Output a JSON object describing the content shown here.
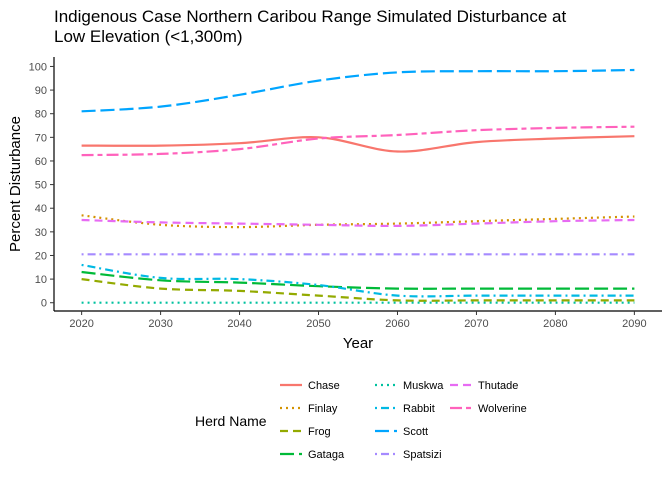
{
  "chart_data": {
    "type": "line",
    "title_lines": [
      "Indigenous Case Northern Caribou Range Simulated Disturbance at",
      "Low Elevation (<1,300m)"
    ],
    "xlabel": "Year",
    "ylabel": "Percent Disturbance",
    "xlim": [
      2016.5,
      2093.5
    ],
    "ylim": [
      -3.5,
      104
    ],
    "x_ticks": [
      2020,
      2030,
      2040,
      2050,
      2060,
      2070,
      2080,
      2090
    ],
    "y_ticks": [
      0,
      10,
      20,
      30,
      40,
      50,
      60,
      70,
      80,
      90,
      100
    ],
    "grid": false,
    "legend": {
      "title": "Herd Name",
      "placement": "bottom"
    },
    "series": [
      {
        "name": "Chase",
        "color": "#F8766D",
        "dash": "solid",
        "x": [
          2020,
          2030,
          2040,
          2050,
          2060,
          2070,
          2080,
          2090
        ],
        "y": [
          66.5,
          66.5,
          67.5,
          70,
          64,
          68,
          69.5,
          70.5
        ]
      },
      {
        "name": "Finlay",
        "color": "#D39200",
        "dash": "dotted",
        "x": [
          2020,
          2030,
          2040,
          2050,
          2060,
          2070,
          2080,
          2090
        ],
        "y": [
          37,
          33,
          32,
          33,
          33.5,
          34.5,
          35.5,
          36.5
        ]
      },
      {
        "name": "Frog",
        "color": "#93AA00",
        "dash": "dashed",
        "x": [
          2020,
          2030,
          2040,
          2050,
          2060,
          2070,
          2080,
          2090
        ],
        "y": [
          10,
          6,
          5,
          3,
          1,
          1,
          1,
          1
        ]
      },
      {
        "name": "Gataga",
        "color": "#00BA38",
        "dash": "longdash",
        "x": [
          2020,
          2030,
          2040,
          2050,
          2060,
          2070,
          2080,
          2090
        ],
        "y": [
          13,
          9.5,
          8.5,
          7,
          6,
          6,
          6,
          6
        ]
      },
      {
        "name": "Muskwa",
        "color": "#00C19F",
        "dash": "dotted",
        "x": [
          2020,
          2030,
          2040,
          2050,
          2060,
          2070,
          2080,
          2090
        ],
        "y": [
          0,
          0,
          0,
          0,
          0,
          0,
          0,
          0
        ]
      },
      {
        "name": "Rabbit",
        "color": "#00B9E3",
        "dash": "dotdash",
        "x": [
          2020,
          2030,
          2040,
          2050,
          2060,
          2070,
          2080,
          2090
        ],
        "y": [
          16,
          10.5,
          10,
          7.5,
          3,
          3,
          3,
          3
        ]
      },
      {
        "name": "Scott",
        "color": "#00A5FF",
        "dash": "longdash",
        "x": [
          2020,
          2030,
          2040,
          2050,
          2060,
          2070,
          2080,
          2090
        ],
        "y": [
          81,
          83,
          88,
          94,
          97.5,
          98,
          98,
          98.5
        ]
      },
      {
        "name": "Spatsizi",
        "color": "#A58AFF",
        "dash": "dotdash",
        "x": [
          2020,
          2030,
          2040,
          2050,
          2060,
          2070,
          2080,
          2090
        ],
        "y": [
          20.5,
          20.5,
          20.5,
          20.5,
          20.5,
          20.5,
          20.5,
          20.5
        ]
      },
      {
        "name": "Thutade",
        "color": "#E76BF3",
        "dash": "dashed",
        "x": [
          2020,
          2030,
          2040,
          2050,
          2060,
          2070,
          2080,
          2090
        ],
        "y": [
          35,
          34,
          33.5,
          33,
          32.5,
          33.5,
          34.5,
          35
        ]
      },
      {
        "name": "Wolverine",
        "color": "#FF62BC",
        "dash": "twodash",
        "x": [
          2020,
          2030,
          2040,
          2050,
          2060,
          2070,
          2080,
          2090
        ],
        "y": [
          62.5,
          63,
          65,
          69.5,
          71,
          73,
          74,
          74.5
        ]
      }
    ]
  }
}
